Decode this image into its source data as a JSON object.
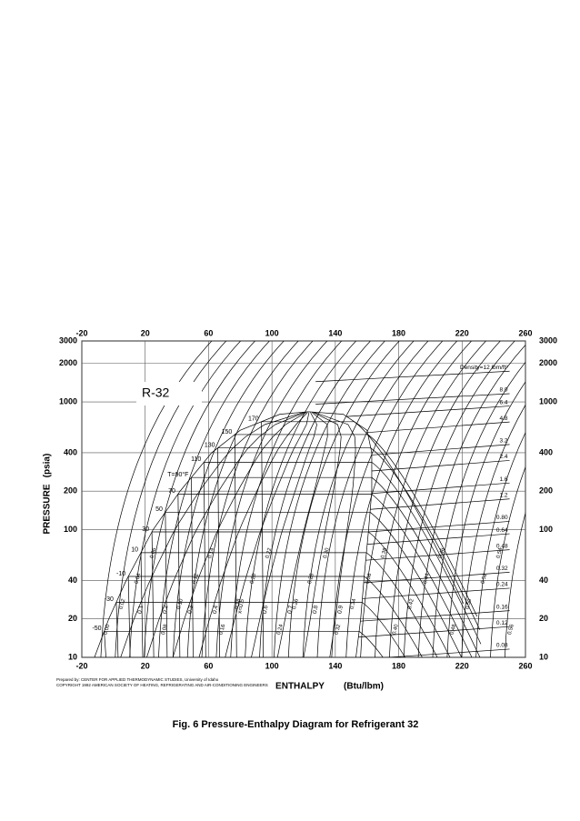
{
  "chart_data": {
    "type": "line",
    "title": "R-32",
    "caption": "Fig. 6   Pressure-Enthalpy Diagram for Refrigerant 32",
    "credits": [
      "Prepared by: CENTER FOR APPLIED THERMODYNAMIC STUDIES, University of Idaho",
      "COPYRIGHT 1992 AMERICAN SOCIETY OF HEATING, REFRIGERATING AND AIR-CONDITIONING ENGINEERS"
    ],
    "x_label": "ENTHALPY",
    "x_unit": "(Btu/lbm)",
    "y_label": "PRESSURE",
    "y_unit": "(psia)",
    "xlim": [
      -20,
      260
    ],
    "ylim": [
      10,
      3000
    ],
    "y_scale": "log",
    "grid": true,
    "color": "#000000",
    "xticks": [
      -20,
      20,
      60,
      100,
      140,
      180,
      220,
      260
    ],
    "yticks": [
      10,
      20,
      40,
      100,
      200,
      400,
      1000,
      2000,
      3000
    ],
    "series": [
      {
        "x": [
          -12,
          -3,
          8,
          25,
          42,
          62,
          80,
          105,
          123
        ],
        "values": [
          10,
          20,
          40,
          100,
          200,
          400,
          600,
          800,
          838
        ]
      },
      {
        "x": [
          123,
          145,
          160,
          163,
          163,
          161,
          158,
          156,
          153
        ],
        "values": [
          838,
          800,
          600,
          400,
          200,
          100,
          40,
          20,
          10
        ]
      }
    ],
    "isotherms": {
      "values": [
        -50,
        -30,
        -10,
        10,
        30,
        50,
        70,
        90,
        110,
        130,
        150,
        170
      ],
      "value_labels": [
        "-50",
        "-30",
        "-10",
        "10",
        "30",
        "50",
        "70",
        "T=90°F",
        "110",
        "130",
        "150",
        "170"
      ],
      "pressures": [
        16,
        27,
        43,
        66,
        96,
        137,
        190,
        256,
        337,
        436,
        555,
        700
      ]
    },
    "quality": {
      "values": [
        0.1,
        0.2,
        0.3,
        0.4,
        0.5,
        0.6,
        0.7,
        0.8,
        0.9
      ],
      "value_labels": [
        "0.1",
        "0.2",
        "0.3",
        "0.4",
        "x=0.5",
        "0.6",
        "0.7",
        "0.8",
        "0.9"
      ]
    },
    "entropy": {
      "values": [
        0,
        0.02,
        0.04,
        0.06,
        0.08,
        0.1,
        0.12,
        0.14,
        0.16,
        0.18,
        0.2,
        0.22,
        0.24,
        0.26,
        0.28,
        0.3,
        0.32,
        0.34,
        0.36,
        0.38,
        0.4,
        0.42,
        0.44,
        0.46,
        0.48,
        0.5,
        0.52,
        0.54,
        0.56
      ],
      "value_labels": [
        "0.00",
        "0.02",
        "0.04",
        "0.06",
        "0.08",
        "0.10",
        "0.12",
        "0.14",
        "0.16",
        "0.18",
        "0.20",
        "0.22",
        "0.24",
        "0.26",
        "0.28",
        "0.30",
        "0.32",
        "0.34",
        "0.36",
        "0.38",
        "0.40",
        "0.42",
        "0.44",
        "0.46",
        "0.48",
        "0.50",
        "0.52",
        "0.54",
        "0.56"
      ]
    },
    "density": {
      "values": [
        12,
        8,
        6.4,
        4.8,
        3.2,
        2.4,
        1.6,
        1.2,
        0.8,
        0.64,
        0.48,
        0.32,
        0.24,
        0.16,
        0.12,
        0.08
      ],
      "value_labels": [
        "Density=12 lbm/ft³",
        "8.0",
        "6.4",
        "4.8",
        "3.2",
        "2.4",
        "1.6",
        "1.2",
        "0.80",
        "0.64",
        "0.48",
        "0.32",
        "0.24",
        "0.16",
        "0.12",
        "0.08"
      ]
    }
  }
}
